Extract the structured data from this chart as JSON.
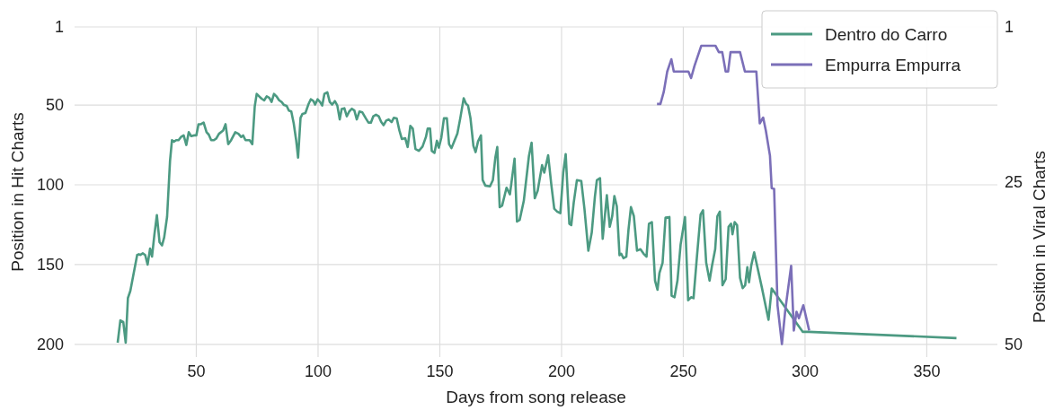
{
  "chart_data": {
    "type": "line",
    "xlabel": "Days from song release",
    "ylabel": "Position in Hit Charts",
    "y2label": "Position in Viral Charts",
    "xlim": [
      0,
      379
    ],
    "xticks": [
      50,
      100,
      150,
      200,
      250,
      300,
      350
    ],
    "ylim": [
      208,
      1
    ],
    "yticks": [
      1,
      50,
      100,
      150,
      200
    ],
    "y2lim": [
      52,
      1
    ],
    "y2ticks": [
      1,
      25,
      50
    ],
    "grid": true,
    "legend": "top right",
    "series": [
      {
        "name": "Dentro do Carro",
        "color": "#4c9a82",
        "x": [
          17.7,
          18.8,
          20,
          21,
          21.9,
          22.9,
          25.7,
          26.4,
          27,
          28,
          29,
          30,
          31,
          31.8,
          32.8,
          33.8,
          34.9,
          35.9,
          36.8,
          38,
          39.2,
          40,
          40.8,
          41.7,
          42.7,
          43.7,
          44.8,
          45.9,
          46.9,
          47.9,
          49,
          50,
          50.9,
          51.9,
          53,
          54.2,
          55.1,
          56.1,
          57.2,
          58.2,
          59.3,
          61,
          62,
          63.1,
          64.3,
          66,
          67.3,
          68.4,
          69.2,
          70.2,
          71.9,
          73,
          74,
          74.8,
          75.8,
          76.8,
          77.9,
          78.9,
          80,
          80.9,
          81.9,
          82.9,
          84,
          85,
          86,
          87.1,
          88,
          89,
          90,
          91,
          91.8,
          92.8,
          93.6,
          94.8,
          96,
          97,
          98.1,
          98.8,
          99.8,
          100.8,
          101.7,
          102.6,
          103.8,
          104.8,
          105.8,
          106.9,
          107.9,
          108.9,
          109.7,
          110.8,
          111.8,
          112.8,
          113.9,
          114.9,
          115.9,
          117,
          118.2,
          119.6,
          120.7,
          121.7,
          122.7,
          123.8,
          124.9,
          125.9,
          126.9,
          128,
          129,
          130.2,
          131.1,
          132.3,
          133.4,
          134.4,
          135.8,
          136.8,
          137.9,
          138.9,
          140,
          141.4,
          142.9,
          144.3,
          145,
          146,
          146.7,
          147.8,
          148.8,
          149.6,
          150.6,
          151.7,
          152.9,
          153.8,
          154.8,
          156.3,
          157.2,
          158.4,
          159.8,
          160.8,
          161.6,
          162.6,
          163.8,
          164.7,
          165.7,
          166.9,
          167.6,
          168.7,
          170.6,
          171.8,
          172.8,
          173.6,
          174.6,
          175.6,
          177.4,
          178.8,
          180.7,
          181.7,
          182.8,
          184.5,
          186.6,
          187.7,
          189,
          190.2,
          192,
          192.9,
          194.5,
          195.8,
          197,
          198.2,
          199.5,
          200.7,
          201.7,
          202.6,
          203.2,
          204,
          205,
          206.3,
          208.1,
          209.4,
          211,
          212.4,
          213.7,
          214.5,
          215.8,
          216.9,
          218.6,
          219.8,
          220.8,
          221.7,
          222.7,
          223.8,
          224.5,
          225.4,
          226.6,
          227.5,
          228.5,
          229.7,
          231,
          232.4,
          233.7,
          234.9,
          235.9,
          237.1,
          238.4,
          239.4,
          240.2,
          241.5,
          242.7,
          244.3,
          245.2,
          246.4,
          247.6,
          248.9,
          250.7,
          252,
          253.2,
          254.2,
          255.6,
          257.1,
          258.1,
          259.4,
          260.8,
          261.8,
          263.1,
          264,
          265,
          266.1,
          267.4,
          268.6,
          269.6,
          270.2,
          271.1,
          272.1,
          273.3,
          274.4,
          275.4,
          276.3,
          277,
          277.9,
          279.1,
          282.2,
          285,
          286.3,
          299.1,
          301.5,
          362.2
        ],
        "values": [
          199,
          185,
          186,
          199,
          171,
          166.5,
          144,
          143.5,
          144,
          143,
          144,
          150,
          140,
          145,
          131,
          119,
          136,
          138,
          133,
          120,
          85,
          72,
          73,
          72,
          72,
          70,
          69,
          75,
          67,
          69.5,
          69,
          69,
          62,
          62,
          61,
          67,
          68.5,
          72,
          72,
          71,
          68,
          66,
          62,
          74.5,
          72,
          67,
          68,
          70,
          69,
          72,
          72,
          74.5,
          50.8,
          43,
          44.5,
          46,
          47,
          44.5,
          45.5,
          48,
          43,
          44.5,
          47,
          48,
          50,
          50.5,
          53.5,
          54,
          61.5,
          72,
          83,
          58,
          55.5,
          55,
          49.7,
          46.4,
          47.5,
          49.7,
          46.4,
          48,
          50.3,
          43,
          42,
          48,
          49.7,
          47.5,
          50.3,
          59,
          52.5,
          52,
          57,
          54,
          52.3,
          53.4,
          59,
          54,
          54.6,
          58.3,
          61,
          61,
          57,
          56,
          57,
          60.5,
          62.6,
          59.7,
          59,
          60.7,
          58,
          58.4,
          65.9,
          71.3,
          70.8,
          76.3,
          63,
          64.8,
          77.6,
          78.7,
          76,
          70,
          64.8,
          64.8,
          78.7,
          80,
          72.4,
          76.7,
          70.6,
          58.3,
          58.3,
          74.5,
          77,
          71.3,
          68,
          58.3,
          45.8,
          49.2,
          50.3,
          58.3,
          75.6,
          79.5,
          72.8,
          69,
          97,
          100.5,
          101,
          97,
          83,
          76.3,
          114,
          113,
          101.8,
          106,
          83.6,
          123,
          122,
          110,
          82,
          73.6,
          108.4,
          103.7,
          87.7,
          92.4,
          81.5,
          99.9,
          115,
          116.8,
          117.8,
          92.4,
          80.7,
          107.4,
          124.4,
          125.3,
          111.2,
          97.1,
          97.6,
          115,
          141.3,
          130,
          107.4,
          97.1,
          95.8,
          133.8,
          106.5,
          126.3,
          119.7,
          107,
          113.5,
          144.1,
          143.2,
          146,
          145.1,
          128.1,
          114,
          119.7,
          141.3,
          140.4,
          143.2,
          145.1,
          124.4,
          123.4,
          160.1,
          165.8,
          155.4,
          148.8,
          120.6,
          120.2,
          169.5,
          170.5,
          160.1,
          137.5,
          120.2,
          172.4,
          170.5,
          171.1,
          145.1,
          118.7,
          115.9,
          148.8,
          160.1,
          150.7,
          140.4,
          119.7,
          116.8,
          163,
          159.2,
          126.3,
          124.4,
          131,
          123.4,
          125.3,
          158.3,
          164.8,
          163,
          151.7,
          161.1,
          150.7,
          142.3,
          163.9,
          184.6,
          165,
          192.2,
          192.2,
          196.1
        ]
      },
      {
        "name": "Empurra Empurra",
        "color": "#7b6fb8",
        "axis": "y2",
        "x": [
          239.2,
          240.6,
          242,
          243.4,
          245.1,
          246.1,
          252.1,
          253.2,
          254.6,
          257.4,
          263.2,
          264.6,
          266,
          267.4,
          268.4,
          269.4,
          273.3,
          275.3,
          280,
          281.4,
          282.8,
          283.9,
          285.6,
          286.3,
          287.3,
          288.7,
          290.5,
          291.9,
          294.3,
          295.4,
          296.5,
          297.5,
          299.3,
          301.7
        ],
        "values": [
          12.9,
          12.9,
          11,
          7.9,
          6,
          7.9,
          7.9,
          8.9,
          7,
          3.9,
          3.9,
          4.9,
          4.9,
          7.9,
          7.9,
          4.9,
          4.9,
          7.9,
          7.9,
          15.9,
          15,
          17,
          20.9,
          25.9,
          26,
          44,
          50,
          44.7,
          37.9,
          47.9,
          45,
          46,
          44,
          47.9
        ]
      }
    ]
  }
}
